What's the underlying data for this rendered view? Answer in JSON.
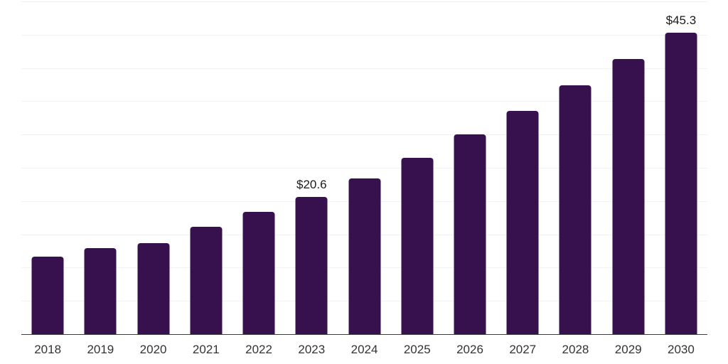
{
  "chart_data": {
    "type": "bar",
    "title": "",
    "xlabel": "",
    "ylabel": "",
    "categories": [
      "2018",
      "2019",
      "2020",
      "2021",
      "2022",
      "2023",
      "2024",
      "2025",
      "2026",
      "2027",
      "2028",
      "2029",
      "2030"
    ],
    "values": [
      11.6,
      12.9,
      13.7,
      16.1,
      18.4,
      20.6,
      23.4,
      26.5,
      30.0,
      33.5,
      37.4,
      41.3,
      45.3
    ],
    "point_labels": [
      "",
      "",
      "",
      "",
      "",
      "$20.6",
      "",
      "",
      "",
      "",
      "",
      "",
      "$45.3"
    ],
    "ylim": [
      0,
      50
    ],
    "gridline_step": 5,
    "grid": "horizontal",
    "legend": "none",
    "colors": {
      "bar": "#37114D",
      "gridline": "#f2f2f4",
      "axis_line": "#3d3d3d",
      "value_label": "#1a1a1a",
      "tick_label": "#333333",
      "background": "#ffffff"
    }
  }
}
